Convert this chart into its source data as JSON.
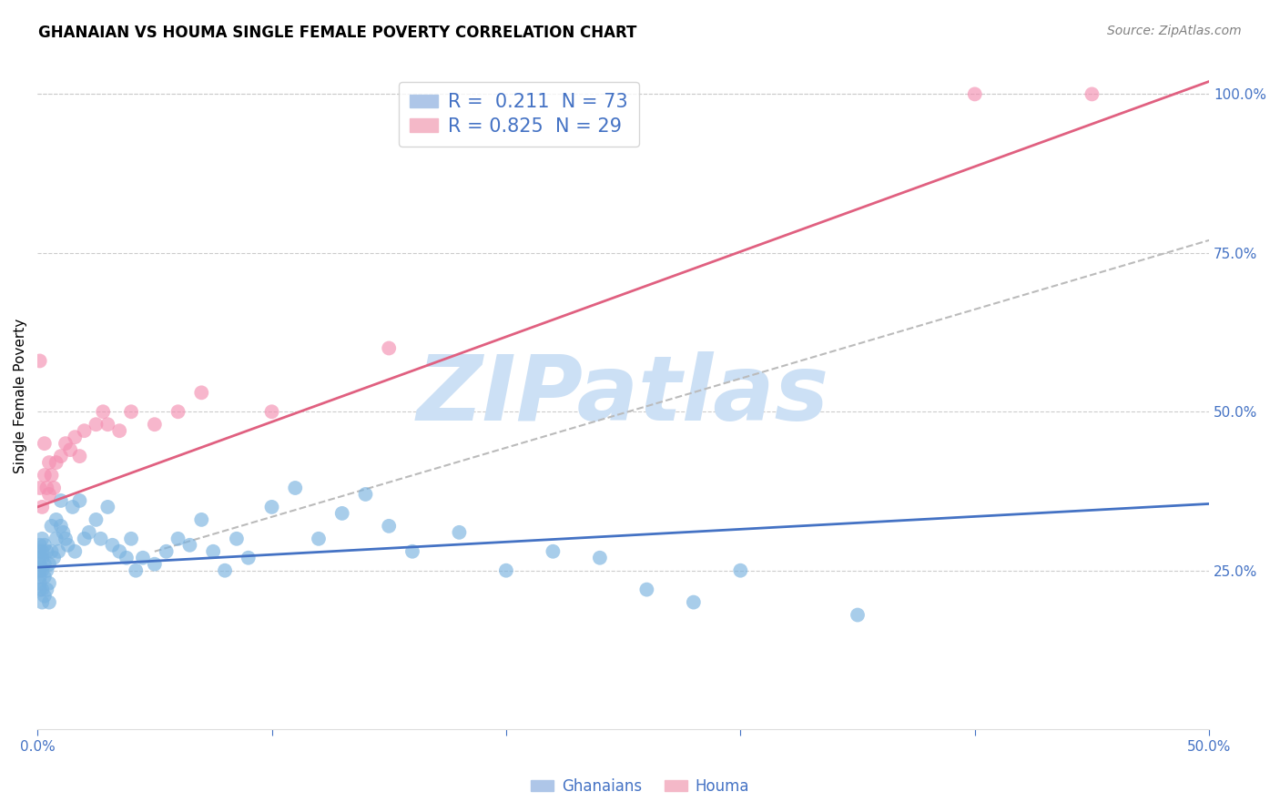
{
  "title": "GHANAIAN VS HOUMA SINGLE FEMALE POVERTY CORRELATION CHART",
  "source": "Source: ZipAtlas.com",
  "ylabel": "Single Female Poverty",
  "watermark": "ZIPatlas",
  "xlim": [
    0.0,
    0.5
  ],
  "ylim": [
    0.0,
    1.05
  ],
  "xtick_vals": [
    0.0,
    0.1,
    0.2,
    0.3,
    0.4,
    0.5
  ],
  "xtick_labels": [
    "0.0%",
    "",
    "",
    "",
    "",
    "50.0%"
  ],
  "ytick_values_right": [
    0.25,
    0.5,
    0.75,
    1.0
  ],
  "ytick_labels_right": [
    "25.0%",
    "50.0%",
    "75.0%",
    "100.0%"
  ],
  "scatter_blue_color": "#7ab3e0",
  "scatter_pink_color": "#f48fb1",
  "line_blue_color": "#4472c4",
  "line_pink_color": "#e06080",
  "dashed_line_color": "#bbbbbb",
  "title_fontsize": 12,
  "source_fontsize": 10,
  "axis_label_fontsize": 11,
  "tick_fontsize": 11,
  "watermark_color": "#cce0f5",
  "background_color": "#ffffff",
  "blue_line_x0": 0.0,
  "blue_line_y0": 0.255,
  "blue_line_x1": 0.5,
  "blue_line_y1": 0.355,
  "pink_line_x0": 0.0,
  "pink_line_y0": 0.35,
  "pink_line_x1": 0.5,
  "pink_line_y1": 1.02,
  "dash_line_x0": 0.05,
  "dash_line_y0": 0.28,
  "dash_line_x1": 0.5,
  "dash_line_y1": 0.77,
  "ghanaians_x": [
    0.001,
    0.001,
    0.001,
    0.001,
    0.001,
    0.001,
    0.001,
    0.001,
    0.002,
    0.002,
    0.002,
    0.002,
    0.002,
    0.002,
    0.003,
    0.003,
    0.003,
    0.003,
    0.004,
    0.004,
    0.004,
    0.005,
    0.005,
    0.005,
    0.006,
    0.006,
    0.007,
    0.008,
    0.008,
    0.009,
    0.01,
    0.01,
    0.011,
    0.012,
    0.013,
    0.015,
    0.016,
    0.018,
    0.02,
    0.022,
    0.025,
    0.027,
    0.03,
    0.032,
    0.035,
    0.038,
    0.04,
    0.042,
    0.045,
    0.05,
    0.055,
    0.06,
    0.065,
    0.07,
    0.075,
    0.08,
    0.085,
    0.09,
    0.1,
    0.11,
    0.12,
    0.13,
    0.14,
    0.15,
    0.16,
    0.18,
    0.2,
    0.22,
    0.24,
    0.26,
    0.28,
    0.3,
    0.35
  ],
  "ghanaians_y": [
    0.22,
    0.23,
    0.24,
    0.25,
    0.26,
    0.27,
    0.28,
    0.29,
    0.2,
    0.22,
    0.25,
    0.27,
    0.28,
    0.3,
    0.21,
    0.24,
    0.26,
    0.29,
    0.22,
    0.25,
    0.28,
    0.2,
    0.23,
    0.26,
    0.28,
    0.32,
    0.27,
    0.3,
    0.33,
    0.28,
    0.32,
    0.36,
    0.31,
    0.3,
    0.29,
    0.35,
    0.28,
    0.36,
    0.3,
    0.31,
    0.33,
    0.3,
    0.35,
    0.29,
    0.28,
    0.27,
    0.3,
    0.25,
    0.27,
    0.26,
    0.28,
    0.3,
    0.29,
    0.33,
    0.28,
    0.25,
    0.3,
    0.27,
    0.35,
    0.38,
    0.3,
    0.34,
    0.37,
    0.32,
    0.28,
    0.31,
    0.25,
    0.28,
    0.27,
    0.22,
    0.2,
    0.25,
    0.18
  ],
  "houma_x": [
    0.001,
    0.001,
    0.002,
    0.003,
    0.003,
    0.004,
    0.005,
    0.005,
    0.006,
    0.007,
    0.008,
    0.01,
    0.012,
    0.014,
    0.016,
    0.018,
    0.02,
    0.025,
    0.028,
    0.03,
    0.035,
    0.04,
    0.05,
    0.06,
    0.07,
    0.1,
    0.15,
    0.4,
    0.45
  ],
  "houma_y": [
    0.38,
    0.58,
    0.35,
    0.4,
    0.45,
    0.38,
    0.42,
    0.37,
    0.4,
    0.38,
    0.42,
    0.43,
    0.45,
    0.44,
    0.46,
    0.43,
    0.47,
    0.48,
    0.5,
    0.48,
    0.47,
    0.5,
    0.48,
    0.5,
    0.53,
    0.5,
    0.6,
    1.0,
    1.0
  ]
}
